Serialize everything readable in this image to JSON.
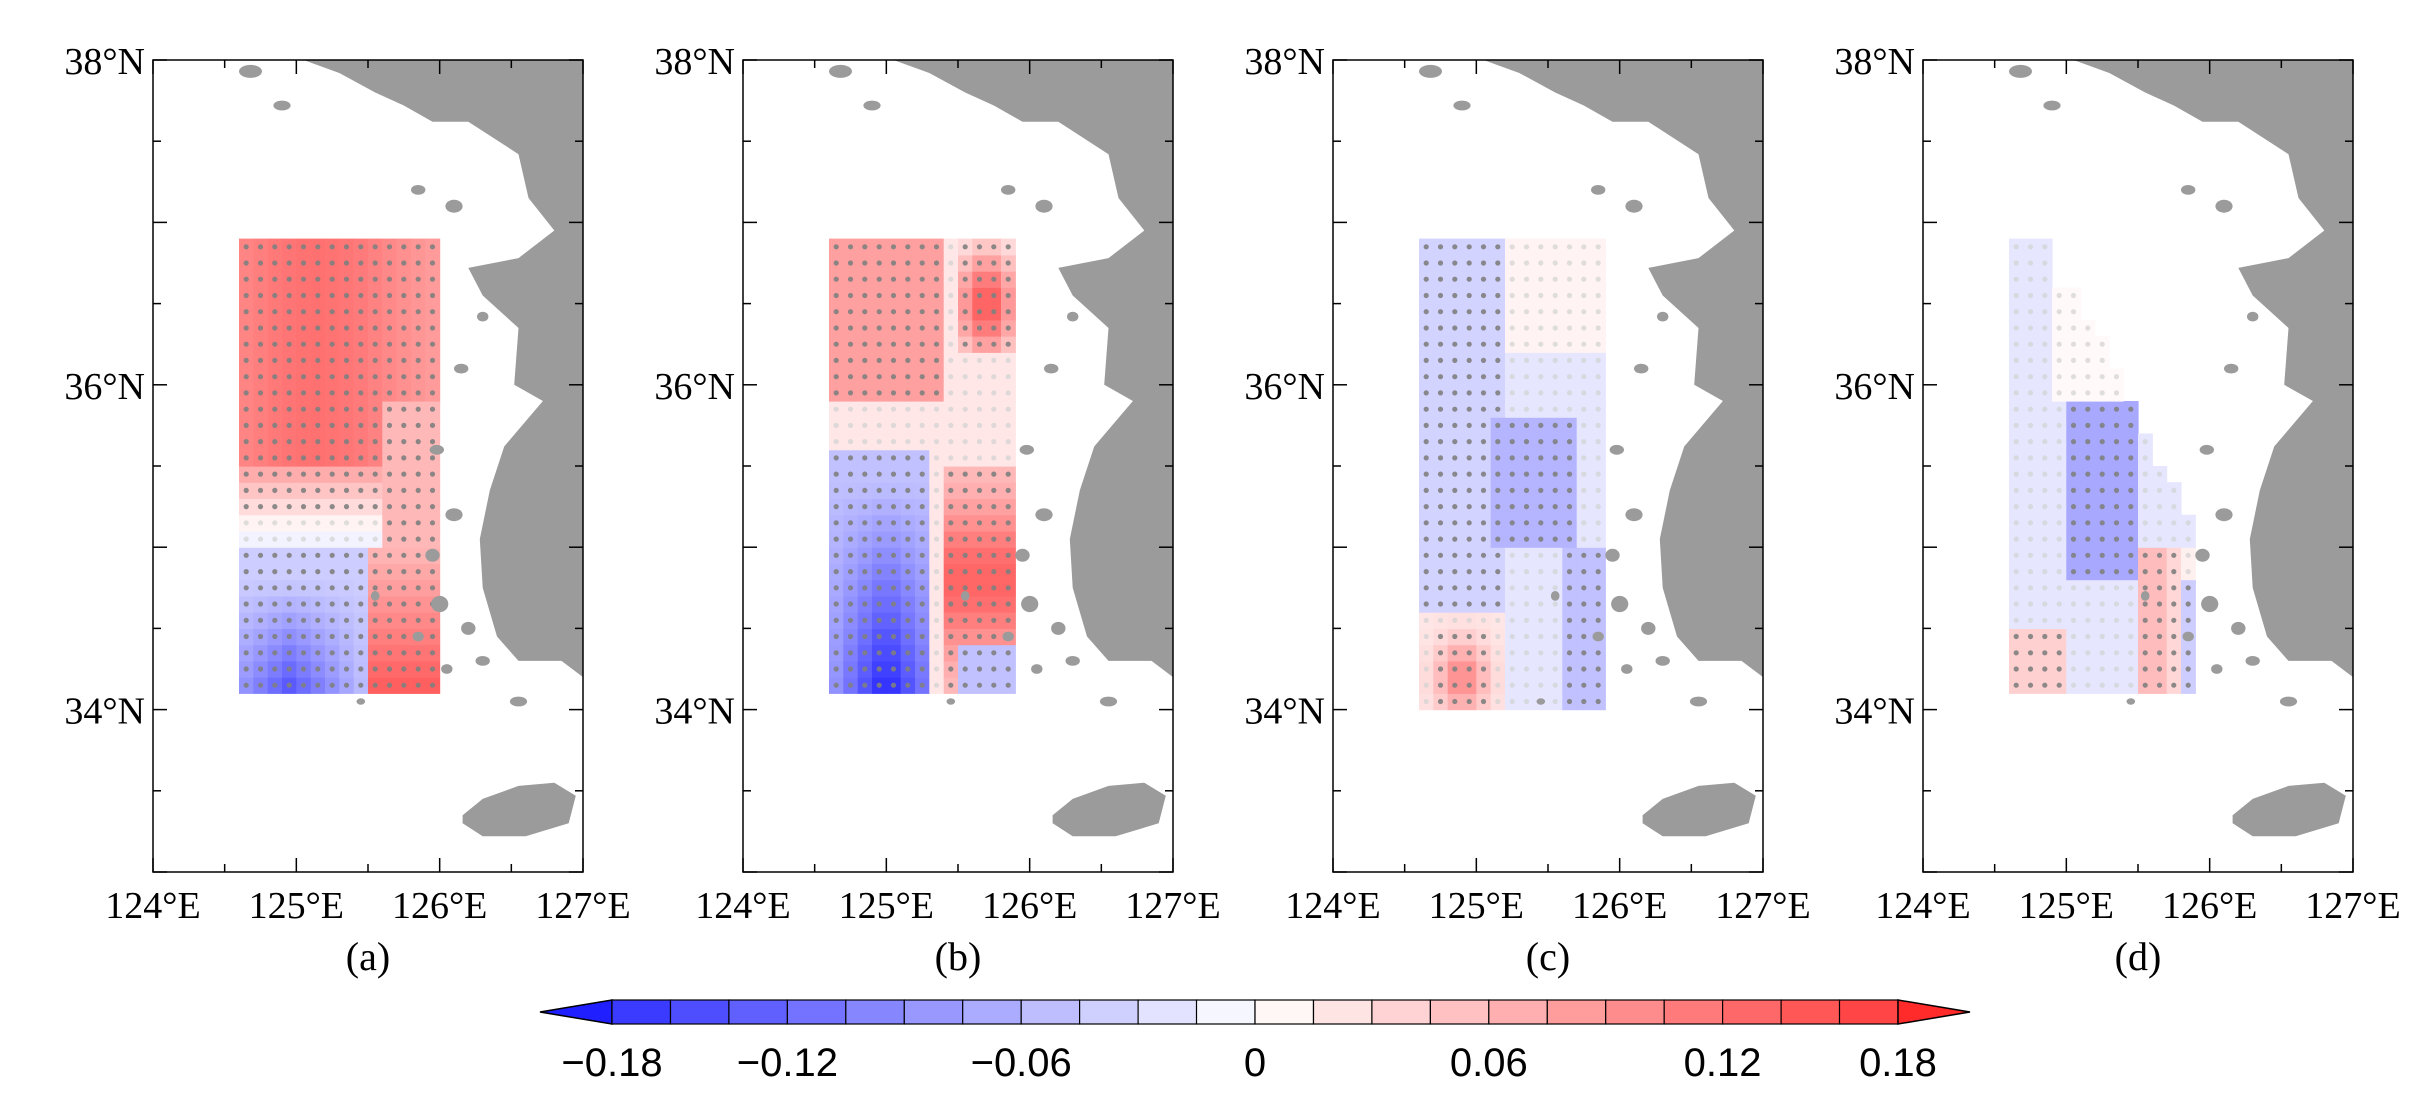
{
  "map": {
    "lat_labels": [
      "38°N",
      "36°N",
      "34°N"
    ],
    "lon_labels": [
      "124°E",
      "125°E",
      "126°E",
      "127°E"
    ],
    "lat_range": [
      33.0,
      38.0
    ],
    "lon_range": [
      124.0,
      127.0
    ],
    "panels": [
      {
        "id": "a",
        "label": "(a)"
      },
      {
        "id": "b",
        "label": "(b)"
      },
      {
        "id": "c",
        "label": "(c)"
      },
      {
        "id": "d",
        "label": "(d)"
      }
    ]
  },
  "colorbar": {
    "tick_labels": [
      "−0.18",
      "−0.12",
      "−0.06",
      "0",
      "0.06",
      "0.12",
      "0.18"
    ],
    "tick_values": [
      -0.18,
      -0.12,
      -0.06,
      0,
      0.06,
      0.12,
      0.18
    ],
    "levels": [
      -0.18,
      -0.165,
      -0.15,
      -0.135,
      -0.12,
      -0.105,
      -0.09,
      -0.075,
      -0.06,
      -0.045,
      -0.03,
      -0.015,
      0,
      0.015,
      0.03,
      0.045,
      0.06,
      0.075,
      0.09,
      0.105,
      0.12,
      0.135,
      0.15,
      0.165,
      0.18
    ],
    "colors": {
      "negative": "#1f1fff",
      "neutral": "#ffffff",
      "positive": "#ff2a2a",
      "land": "#9b9b9b",
      "dots": "#7f7f7f"
    }
  }
}
